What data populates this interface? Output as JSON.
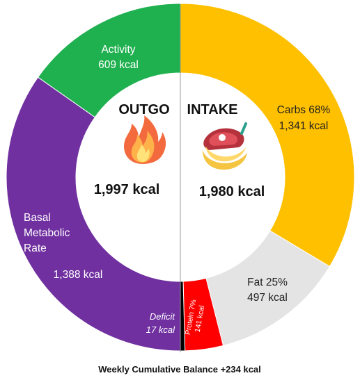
{
  "chart_data": {
    "type": "donut",
    "outgo": {
      "heading": "OUTGO",
      "total_label": "1,997 kcal",
      "icon": "flame-icon",
      "segments": [
        {
          "key": "activity",
          "name": "Activity",
          "value_label": "609 kcal",
          "value": 609,
          "color": "#1fb04f"
        },
        {
          "key": "bmr",
          "name_lines": [
            "Basal",
            "Metabolic",
            "Rate"
          ],
          "value_label": "1,388 kcal",
          "value": 1388,
          "color": "#7030a0"
        }
      ]
    },
    "intake": {
      "heading": "INTAKE",
      "total_label": "1,980 kcal",
      "icon": "food-icon",
      "segments": [
        {
          "key": "carbs",
          "name": "Carbs 68%",
          "value_label": "1,341 kcal",
          "value": 1341,
          "percent": 68,
          "color": "#ffc000"
        },
        {
          "key": "fat",
          "name": "Fat 25%",
          "value_label": "497 kcal",
          "value": 497,
          "percent": 25,
          "color": "#e4e4e4"
        },
        {
          "key": "protein",
          "name": "Protein 7%",
          "value_label": "141 kcal",
          "value": 141,
          "percent": 7,
          "color": "#ff0000"
        },
        {
          "key": "deficit",
          "name": "Deficit",
          "value_label": "17 kcal",
          "value": 17,
          "color": "#000000"
        }
      ]
    },
    "footer": "Weekly Cumulative Balance +234 kcal"
  }
}
